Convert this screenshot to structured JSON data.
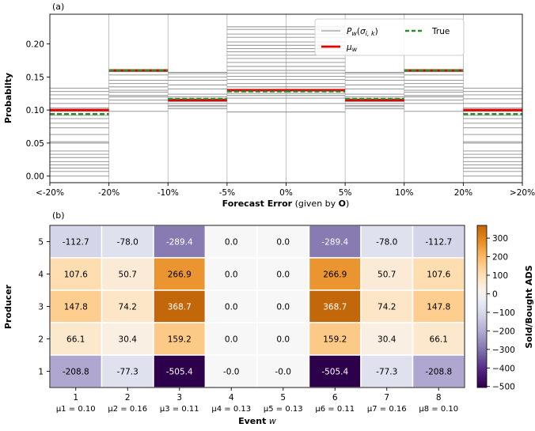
{
  "panel_a": {
    "label": "(a)",
    "xlabel_main": "Forecast Error",
    "xlabel_paren": "(given by ",
    "xlabel_bold": "O",
    "xlabel_close": ")",
    "ylabel": "Probabilty",
    "legend": [
      {
        "label": "P_w(σ_i,k)",
        "color": "#999999"
      },
      {
        "label": "True",
        "color": "#2a8c2a"
      },
      {
        "label": "μ_w",
        "color": "#e00000"
      }
    ]
  },
  "panel_b": {
    "label": "(b)",
    "xlabel": "Event",
    "xlabel_var": "w",
    "ylabel": "Producer",
    "colorbar_label": "Sold/Bought ADS"
  },
  "chart_data": [
    {
      "type": "line",
      "title": "",
      "xlabel": "Forecast Error (given by O)",
      "ylabel": "Probabilty",
      "x_ticks": [
        "<-20%",
        "-20%",
        "-10%",
        "-5%",
        "0%",
        "5%",
        "10%",
        "20%",
        ">20%"
      ],
      "ylim": [
        -0.01,
        0.245
      ],
      "y_ticks": [
        0.0,
        0.05,
        0.1,
        0.15,
        0.2
      ],
      "y_tick_labels": [
        "0.00",
        "0.05",
        "0.10",
        "0.15",
        "0.20"
      ],
      "grid": "vertical",
      "legend_position": "top-right",
      "bins": [
        "<-20%",
        "-20% to -10%",
        "-10% to -5%",
        "-5% to 0%",
        "0% to 5%",
        "5% to 10%",
        "10% to 20%",
        ">20%"
      ],
      "scenario_probabilities": [
        [
          0.0,
          0.007,
          0.012,
          0.017,
          0.022,
          0.028,
          0.033,
          0.038,
          0.05,
          0.052,
          0.063,
          0.073,
          0.08,
          0.087,
          0.092,
          0.098,
          0.103,
          0.11,
          0.117,
          0.123,
          0.128,
          0.133
        ],
        [
          0.098,
          0.11,
          0.115,
          0.12,
          0.122,
          0.127,
          0.13,
          0.135,
          0.14,
          0.145,
          0.153,
          0.158
        ],
        [
          0.102,
          0.105,
          0.107,
          0.11,
          0.113,
          0.117,
          0.12,
          0.124,
          0.132,
          0.138,
          0.145,
          0.15,
          0.155,
          0.157
        ],
        [
          0.097,
          0.11,
          0.118,
          0.122,
          0.125,
          0.13,
          0.135,
          0.14,
          0.146,
          0.151,
          0.156,
          0.16,
          0.166,
          0.172,
          0.178,
          0.183,
          0.188,
          0.193,
          0.198,
          0.203,
          0.21,
          0.215,
          0.222,
          0.226
        ],
        [
          0.097,
          0.11,
          0.118,
          0.122,
          0.125,
          0.13,
          0.135,
          0.14,
          0.146,
          0.151,
          0.156,
          0.16,
          0.166,
          0.172,
          0.178,
          0.183,
          0.188,
          0.193,
          0.198,
          0.203,
          0.21,
          0.215,
          0.222,
          0.226
        ],
        [
          0.102,
          0.105,
          0.107,
          0.11,
          0.113,
          0.117,
          0.12,
          0.124,
          0.132,
          0.138,
          0.145,
          0.15,
          0.155,
          0.157
        ],
        [
          0.098,
          0.11,
          0.115,
          0.12,
          0.122,
          0.127,
          0.13,
          0.135,
          0.14,
          0.145,
          0.153,
          0.158
        ],
        [
          0.0,
          0.007,
          0.012,
          0.017,
          0.022,
          0.028,
          0.033,
          0.038,
          0.05,
          0.052,
          0.063,
          0.073,
          0.08,
          0.087,
          0.092,
          0.098,
          0.103,
          0.11,
          0.117,
          0.123,
          0.128,
          0.133
        ]
      ],
      "series": [
        {
          "name": "μ_w",
          "values": [
            0.1,
            0.16,
            0.115,
            0.13,
            0.13,
            0.115,
            0.16,
            0.1
          ],
          "color": "#e00000"
        },
        {
          "name": "True",
          "values": [
            0.094,
            0.16,
            0.117,
            0.128,
            0.128,
            0.117,
            0.16,
            0.094
          ],
          "color": "#2a8c2a"
        }
      ]
    },
    {
      "type": "heatmap",
      "title": "",
      "xlabel": "Event w",
      "ylabel": "Producer",
      "x_ticks": [
        "1",
        "2",
        "3",
        "4",
        "5",
        "6",
        "7",
        "8"
      ],
      "x_sublabels": [
        "μ1 = 0.10",
        "μ2 = 0.16",
        "μ3 = 0.11",
        "μ4 = 0.13",
        "μ5 = 0.13",
        "μ6 = 0.11",
        "μ7 = 0.16",
        "μ8 = 0.10"
      ],
      "y_ticks": [
        "5",
        "4",
        "3",
        "2",
        "1"
      ],
      "values": [
        [
          "-112.7",
          "-78.0",
          "-289.4",
          "0.0",
          "0.0",
          "-289.4",
          "-78.0",
          "-112.7"
        ],
        [
          "107.6",
          "50.7",
          "266.9",
          "0.0",
          "0.0",
          "266.9",
          "50.7",
          "107.6"
        ],
        [
          "147.8",
          "74.2",
          "368.7",
          "0.0",
          "0.0",
          "368.7",
          "74.2",
          "147.8"
        ],
        [
          "66.1",
          "30.4",
          "159.2",
          "0.0",
          "0.0",
          "159.2",
          "30.4",
          "66.1"
        ],
        [
          "-208.8",
          "-77.3",
          "-505.4",
          "-0.0",
          "-0.0",
          "-505.4",
          "-77.3",
          "-208.8"
        ]
      ],
      "colorbar": {
        "label": "Sold/Bought ADS",
        "range": [
          -505.4,
          368.7
        ],
        "ticks": [
          300,
          200,
          100,
          0,
          -100,
          -200,
          -300,
          -400,
          -500
        ],
        "tick_labels": [
          "300",
          "200",
          "100",
          "0",
          "−100",
          "−200",
          "−300",
          "−400",
          "−500"
        ],
        "colormap": "PuOr_r"
      }
    }
  ]
}
